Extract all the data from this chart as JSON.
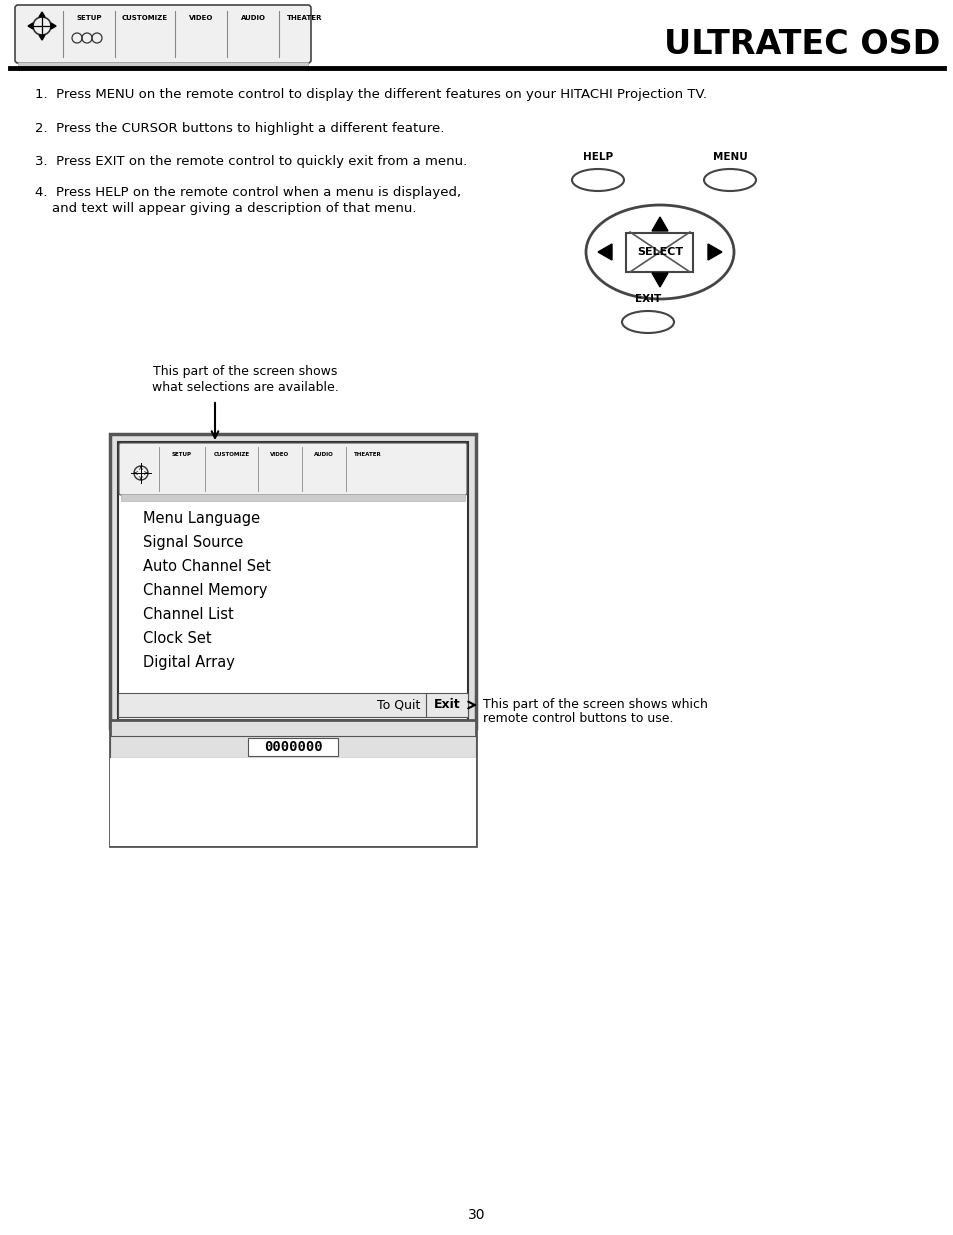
{
  "title": "ULTRATEC OSD",
  "page_number": "30",
  "instructions": [
    "1.  Press MENU on the remote control to display the different features on your HITACHI Projection TV.",
    "2.  Press the CURSOR buttons to highlight a different feature.",
    "3.  Press EXIT on the remote control to quickly exit from a menu.",
    "4.  Press HELP on the remote control when a menu is displayed,"
  ],
  "instruction4_line2": "    and text will appear giving a description of that menu.",
  "menu_items": [
    "Menu Language",
    "Signal Source",
    "Auto Channel Set",
    "Channel Memory",
    "Channel List",
    "Clock Set",
    "Digital Array"
  ],
  "annotation_top_line1": "This part of the screen shows",
  "annotation_top_line2": "what selections are available.",
  "annotation_bottom_left": "To Quit",
  "annotation_bottom_right": "Exit",
  "annotation_right_line1": "This part of the screen shows which",
  "annotation_right_line2": "remote control buttons to use.",
  "channel_display": "0000000",
  "bg_color": "#ffffff",
  "text_color": "#000000",
  "header_tab_labels": [
    "SETUP",
    "CUSTOMIZE",
    "VIDEO",
    "AUDIO",
    "THEATER"
  ]
}
